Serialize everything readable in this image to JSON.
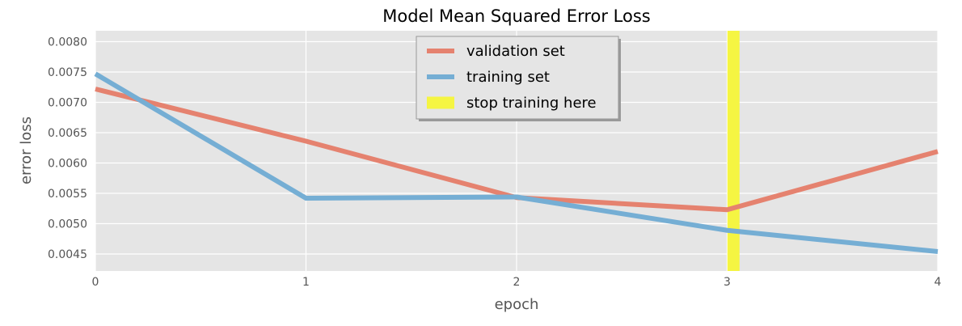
{
  "chart_data": {
    "type": "line",
    "title": "Model Mean Squared Error Loss",
    "xlabel": "epoch",
    "ylabel": "error loss",
    "xlim": [
      0,
      4
    ],
    "ylim": [
      0.00422,
      0.00818
    ],
    "x_ticks": [
      0,
      1,
      2,
      3,
      4
    ],
    "y_ticks": [
      0.0045,
      0.005,
      0.0055,
      0.006,
      0.0065,
      0.007,
      0.0075,
      0.008
    ],
    "x_tick_labels": [
      "0",
      "1",
      "2",
      "3",
      "4"
    ],
    "y_tick_labels": [
      "0.0045",
      "0.0050",
      "0.0055",
      "0.0060",
      "0.0065",
      "0.0070",
      "0.0075",
      "0.0080"
    ],
    "grid": true,
    "legend": "top-center",
    "series": [
      {
        "name": "validation set",
        "color": "#E5826F",
        "x": [
          0,
          1,
          2,
          3,
          4
        ],
        "values": [
          0.00722,
          0.00636,
          0.00543,
          0.00523,
          0.00619
        ]
      },
      {
        "name": "training set",
        "color": "#75AED4",
        "x": [
          0,
          1,
          2,
          3,
          4
        ],
        "values": [
          0.00747,
          0.00542,
          0.00544,
          0.00489,
          0.00454
        ]
      }
    ],
    "annotations": [
      {
        "name": "stop training here",
        "type": "vline",
        "x": 3.03,
        "color": "#F5F542"
      }
    ]
  }
}
